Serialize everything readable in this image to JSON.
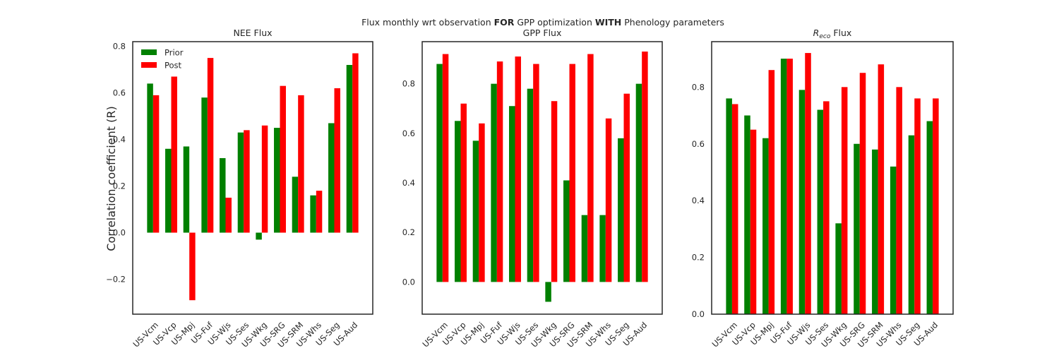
{
  "suptitle": {
    "pre": "Flux monthly wrt observation ",
    "bold1": "FOR",
    "mid": " GPP optimization ",
    "bold2": "WITH",
    "post": " Phenology parameters"
  },
  "ylabel": "Correlation coefficient (R)",
  "legend": {
    "placement": "upper-left",
    "entries": [
      "Prior",
      "Post"
    ]
  },
  "colors": {
    "prior": "#008000",
    "post": "#ff0000",
    "frame": "#262626"
  },
  "chart_data": [
    {
      "type": "bar",
      "title": "NEE Flux",
      "categories": [
        "US-Vcm",
        "US-Vcp",
        "US-Mpj",
        "US-Fuf",
        "US-Wjs",
        "US-Ses",
        "US-Wkg",
        "US-SRG",
        "US-SRM",
        "US-Whs",
        "US-Seg",
        "US-Aud"
      ],
      "series": [
        {
          "name": "Prior",
          "values": [
            0.64,
            0.36,
            0.37,
            0.58,
            0.32,
            0.43,
            -0.03,
            0.45,
            0.24,
            0.16,
            0.47,
            0.72
          ]
        },
        {
          "name": "Post",
          "values": [
            0.59,
            0.67,
            -0.29,
            0.75,
            0.15,
            0.44,
            0.46,
            0.63,
            0.59,
            0.18,
            0.62,
            0.77
          ]
        }
      ],
      "ylim": [
        -0.35,
        0.82
      ],
      "yticks": [
        -0.2,
        0.0,
        0.2,
        0.4,
        0.6,
        0.8
      ],
      "ytick_labels": [
        "−0.2",
        "0.0",
        "0.2",
        "0.4",
        "0.6",
        "0.8"
      ],
      "legend": true
    },
    {
      "type": "bar",
      "title": "GPP Flux",
      "categories": [
        "US-Vcm",
        "US-Vcp",
        "US-Mpj",
        "US-Fuf",
        "US-Wjs",
        "US-Ses",
        "US-Wkg",
        "US-SRG",
        "US-SRM",
        "US-Whs",
        "US-Seg",
        "US-Aud"
      ],
      "series": [
        {
          "name": "Prior",
          "values": [
            0.88,
            0.65,
            0.57,
            0.8,
            0.71,
            0.78,
            -0.08,
            0.41,
            0.27,
            0.27,
            0.58,
            0.8
          ]
        },
        {
          "name": "Post",
          "values": [
            0.92,
            0.72,
            0.64,
            0.89,
            0.91,
            0.88,
            0.73,
            0.88,
            0.92,
            0.66,
            0.76,
            0.93
          ]
        }
      ],
      "ylim": [
        -0.13,
        0.97
      ],
      "yticks": [
        0.0,
        0.2,
        0.4,
        0.6,
        0.8
      ],
      "ytick_labels": [
        "0.0",
        "0.2",
        "0.4",
        "0.6",
        "0.8"
      ],
      "legend": false
    },
    {
      "type": "bar",
      "title_main": "R",
      "title_sub": "eco",
      "title_rest": " Flux",
      "categories": [
        "US-Vcm",
        "US-Vcp",
        "US-Mpj",
        "US-Fuf",
        "US-Wjs",
        "US-Ses",
        "US-Wkg",
        "US-SRG",
        "US-SRM",
        "US-Whs",
        "US-Seg",
        "US-Aud"
      ],
      "series": [
        {
          "name": "Prior",
          "values": [
            0.76,
            0.7,
            0.62,
            0.9,
            0.79,
            0.72,
            0.32,
            0.6,
            0.58,
            0.52,
            0.63,
            0.68
          ]
        },
        {
          "name": "Post",
          "values": [
            0.74,
            0.65,
            0.86,
            0.9,
            0.92,
            0.75,
            0.8,
            0.85,
            0.88,
            0.8,
            0.76,
            0.76
          ]
        }
      ],
      "ylim": [
        0.0,
        0.96
      ],
      "yticks": [
        0.0,
        0.2,
        0.4,
        0.6,
        0.8
      ],
      "ytick_labels": [
        "0.0",
        "0.2",
        "0.4",
        "0.6",
        "0.8"
      ],
      "legend": false
    }
  ]
}
